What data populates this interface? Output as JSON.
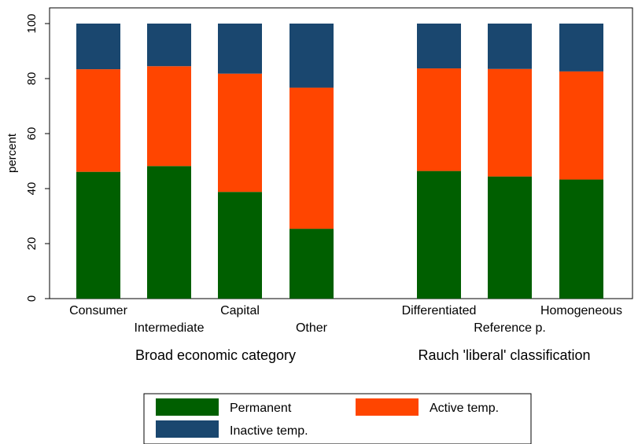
{
  "chart_data": {
    "type": "bar",
    "stacked": true,
    "ylabel": "percent",
    "ylim": [
      0,
      100
    ],
    "yticks": [
      0,
      20,
      40,
      60,
      80,
      100
    ],
    "grid": false,
    "legend_position": "bottom",
    "groups": [
      {
        "label": "Broad economic category",
        "categories": [
          "Consumer",
          "Intermediate",
          "Capital",
          "Other"
        ]
      },
      {
        "label": "Rauch 'liberal' classification",
        "categories": [
          "Differentiated",
          "Reference p.",
          "Homogeneous"
        ]
      }
    ],
    "categories": [
      "Consumer",
      "Intermediate",
      "Capital",
      "Other",
      "Differentiated",
      "Reference p.",
      "Homogeneous"
    ],
    "series": [
      {
        "name": "Permanent",
        "color": "#005f00",
        "values": [
          46.1,
          48.2,
          38.8,
          25.4,
          46.4,
          44.4,
          43.3
        ]
      },
      {
        "name": "Active temp.",
        "color": "#ff4500",
        "values": [
          37.3,
          36.3,
          43.0,
          51.3,
          37.3,
          39.1,
          39.3
        ]
      },
      {
        "name": "Inactive temp.",
        "color": "#1a476f",
        "values": [
          16.6,
          15.5,
          18.2,
          23.3,
          16.3,
          16.5,
          17.4
        ]
      }
    ]
  }
}
